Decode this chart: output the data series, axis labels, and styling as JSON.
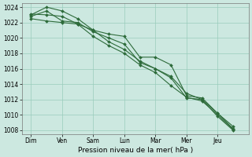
{
  "xlabel": "Pression niveau de la mer( hPa )",
  "ylim": [
    1007.5,
    1024.5
  ],
  "yticks": [
    1008,
    1010,
    1012,
    1014,
    1016,
    1018,
    1020,
    1022,
    1024
  ],
  "xtick_labels": [
    "Dim",
    "Ven",
    "Sam",
    "Lun",
    "Mar",
    "Mer",
    "Jeu"
  ],
  "bg_color": "#cce8e0",
  "grid_color": "#99ccbb",
  "line_color": "#2d6b3a",
  "series1_x": [
    0,
    0.5,
    1.0,
    1.5,
    2.0,
    2.5,
    3.0,
    3.5,
    4.0,
    4.5,
    5.0,
    5.5,
    6.0,
    6.5
  ],
  "series1_y": [
    1023.0,
    1024.0,
    1023.5,
    1022.5,
    1021.0,
    1020.5,
    1020.2,
    1017.5,
    1017.5,
    1016.5,
    1012.5,
    1012.2,
    1010.2,
    1008.2
  ],
  "series2_x": [
    0,
    0.5,
    1.0,
    1.5,
    2.0,
    2.5,
    3.0,
    3.5,
    4.0,
    4.5,
    5.0,
    5.5,
    6.0,
    6.5
  ],
  "series2_y": [
    1022.5,
    1022.2,
    1022.0,
    1021.8,
    1021.0,
    1019.5,
    1018.5,
    1017.0,
    1016.0,
    1014.8,
    1012.2,
    1012.0,
    1009.8,
    1008.0
  ],
  "series3_x": [
    0,
    0.5,
    1.0,
    1.5,
    2.0,
    2.5,
    3.0,
    3.5,
    4.0,
    4.5,
    5.0,
    5.5,
    6.0,
    6.5
  ],
  "series3_y": [
    1022.8,
    1023.5,
    1022.2,
    1022.0,
    1020.8,
    1020.0,
    1019.2,
    1016.8,
    1016.0,
    1015.0,
    1012.8,
    1012.0,
    1010.2,
    1008.5
  ],
  "series4_x": [
    0,
    0.5,
    1.0,
    1.5,
    2.0,
    2.5,
    3.0,
    3.5,
    4.0,
    4.5,
    5.0,
    5.5,
    6.0,
    6.5
  ],
  "series4_y": [
    1023.1,
    1023.0,
    1022.8,
    1021.8,
    1020.2,
    1019.0,
    1018.0,
    1016.5,
    1015.5,
    1013.8,
    1012.3,
    1011.8,
    1010.0,
    1008.1
  ]
}
